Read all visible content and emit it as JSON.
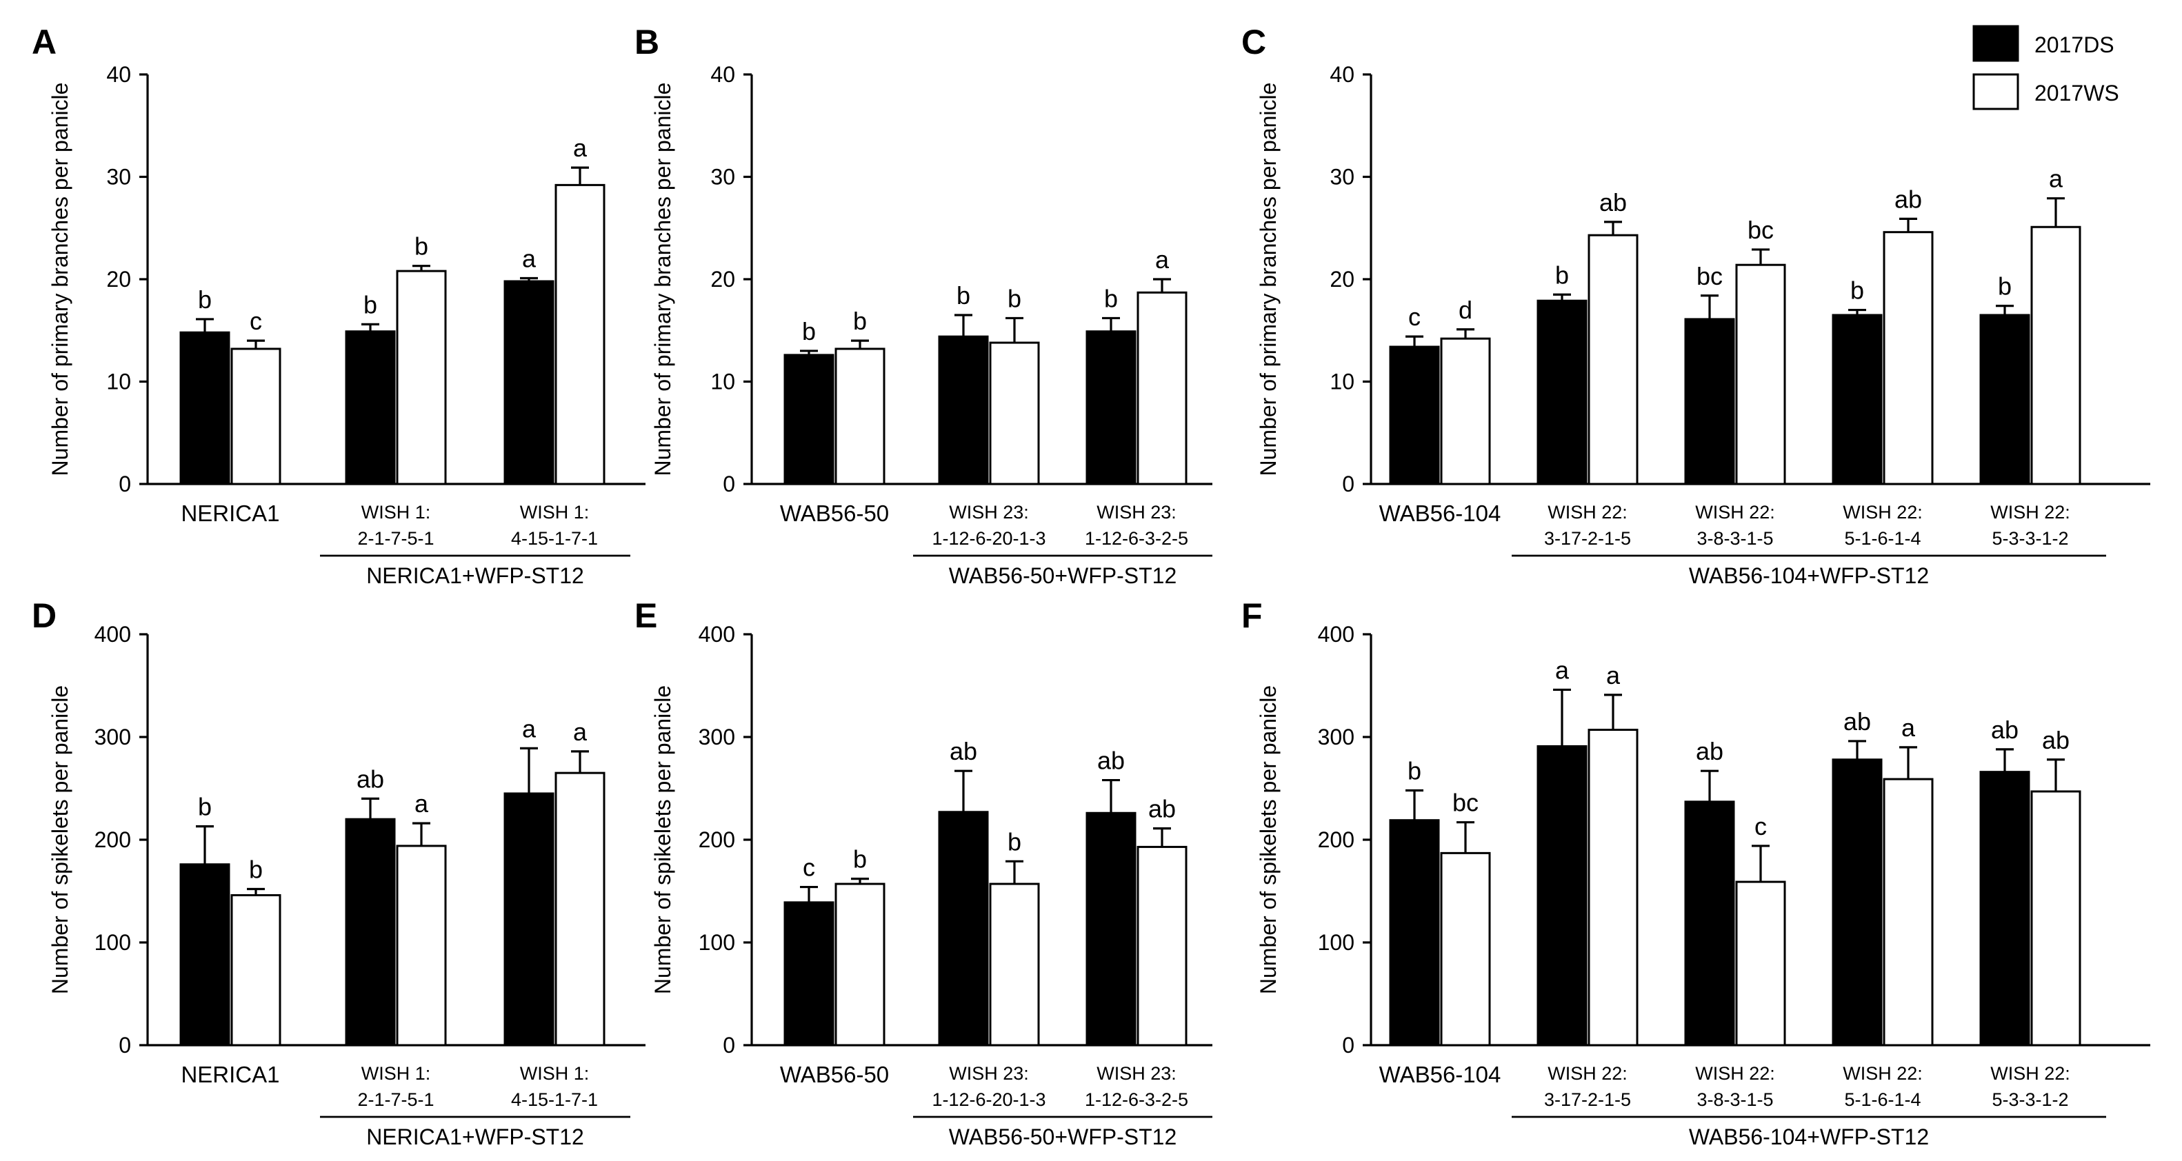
{
  "legend": {
    "items": [
      {
        "label": "2017DS",
        "color": "#000000"
      },
      {
        "label": "2017WS",
        "color": "#ffffff"
      }
    ]
  },
  "chart_data": [
    {
      "panel": "A",
      "type": "bar",
      "ylabel": "Number of primary branches per panicle",
      "ylim": [
        0,
        40
      ],
      "yticks": [
        0,
        10,
        20,
        30,
        40
      ],
      "categories": [
        {
          "lines": [
            "NERICA1"
          ]
        },
        {
          "lines": [
            "WISH 1:",
            "2-1-7-5-1"
          ]
        },
        {
          "lines": [
            "WISH 1:",
            "4-15-1-7-1"
          ]
        }
      ],
      "group": {
        "label": "NERICA1+WFP-ST12",
        "from": 1,
        "to": 2
      },
      "series": [
        {
          "name": "2017DS",
          "values": [
            14.8,
            14.9,
            19.8
          ],
          "errors": [
            1.3,
            0.7,
            0.3
          ],
          "letters": [
            "b",
            "b",
            "a"
          ]
        },
        {
          "name": "2017WS",
          "values": [
            13.2,
            20.8,
            29.2
          ],
          "errors": [
            0.8,
            0.5,
            1.7
          ],
          "letters": [
            "c",
            "b",
            "a"
          ]
        }
      ]
    },
    {
      "panel": "B",
      "type": "bar",
      "ylabel": "Number of primary branches per panicle",
      "ylim": [
        0,
        40
      ],
      "yticks": [
        0,
        10,
        20,
        30,
        40
      ],
      "categories": [
        {
          "lines": [
            "WAB56-50"
          ]
        },
        {
          "lines": [
            "WISH 23:",
            "1-12-6-20-1-3"
          ]
        },
        {
          "lines": [
            "WISH 23:",
            "1-12-6-3-2-5"
          ]
        }
      ],
      "group": {
        "label": "WAB56-50+WFP-ST12",
        "from": 1,
        "to": 2
      },
      "series": [
        {
          "name": "2017DS",
          "values": [
            12.6,
            14.4,
            14.9
          ],
          "errors": [
            0.4,
            2.1,
            1.3
          ],
          "letters": [
            "b",
            "b",
            "b"
          ]
        },
        {
          "name": "2017WS",
          "values": [
            13.2,
            13.8,
            18.7
          ],
          "errors": [
            0.8,
            2.4,
            1.3
          ],
          "letters": [
            "b",
            "b",
            "a"
          ]
        }
      ]
    },
    {
      "panel": "C",
      "type": "bar",
      "ylabel": "Number of primary branches per panicle",
      "ylim": [
        0,
        40
      ],
      "yticks": [
        0,
        10,
        20,
        30,
        40
      ],
      "categories": [
        {
          "lines": [
            "WAB56-104"
          ]
        },
        {
          "lines": [
            "WISH 22:",
            "3-17-2-1-5"
          ]
        },
        {
          "lines": [
            "WISH 22:",
            "3-8-3-1-5"
          ]
        },
        {
          "lines": [
            "WISH 22:",
            "5-1-6-1-4"
          ]
        },
        {
          "lines": [
            "WISH 22:",
            "5-3-3-1-2"
          ]
        }
      ],
      "group": {
        "label": "WAB56-104+WFP-ST12",
        "from": 1,
        "to": 4
      },
      "series": [
        {
          "name": "2017DS",
          "values": [
            13.4,
            17.9,
            16.1,
            16.5,
            16.5
          ],
          "errors": [
            1.0,
            0.6,
            2.3,
            0.5,
            0.9
          ],
          "letters": [
            "c",
            "b",
            "bc",
            "b",
            "b"
          ]
        },
        {
          "name": "2017WS",
          "values": [
            14.2,
            24.3,
            21.4,
            24.6,
            25.1
          ],
          "errors": [
            0.9,
            1.3,
            1.5,
            1.3,
            2.8
          ],
          "letters": [
            "d",
            "ab",
            "bc",
            "ab",
            "a"
          ]
        }
      ]
    },
    {
      "panel": "D",
      "type": "bar",
      "ylabel": "Number of spikelets per panicle",
      "ylim": [
        0,
        400
      ],
      "yticks": [
        0,
        100,
        200,
        300,
        400
      ],
      "categories": [
        {
          "lines": [
            "NERICA1"
          ]
        },
        {
          "lines": [
            "WISH 1:",
            "2-1-7-5-1"
          ]
        },
        {
          "lines": [
            "WISH 1:",
            "4-15-1-7-1"
          ]
        }
      ],
      "group": {
        "label": "NERICA1+WFP-ST12",
        "from": 1,
        "to": 2
      },
      "series": [
        {
          "name": "2017DS",
          "values": [
            176,
            220,
            245
          ],
          "errors": [
            37,
            20,
            44
          ],
          "letters": [
            "b",
            "ab",
            "a"
          ]
        },
        {
          "name": "2017WS",
          "values": [
            146,
            194,
            265
          ],
          "errors": [
            6,
            22,
            21
          ],
          "letters": [
            "b",
            "a",
            "a"
          ]
        }
      ]
    },
    {
      "panel": "E",
      "type": "bar",
      "ylabel": "Number of spikelets per panicle",
      "ylim": [
        0,
        400
      ],
      "yticks": [
        0,
        100,
        200,
        300,
        400
      ],
      "categories": [
        {
          "lines": [
            "WAB56-50"
          ]
        },
        {
          "lines": [
            "WISH 23:",
            "1-12-6-20-1-3"
          ]
        },
        {
          "lines": [
            "WISH 23:",
            "1-12-6-3-2-5"
          ]
        }
      ],
      "group": {
        "label": "WAB56-50+WFP-ST12",
        "from": 1,
        "to": 2
      },
      "series": [
        {
          "name": "2017DS",
          "values": [
            139,
            227,
            226
          ],
          "errors": [
            15,
            40,
            32
          ],
          "letters": [
            "c",
            "ab",
            "ab"
          ]
        },
        {
          "name": "2017WS",
          "values": [
            157,
            157,
            193
          ],
          "errors": [
            5,
            22,
            18
          ],
          "letters": [
            "b",
            "b",
            "ab"
          ]
        }
      ]
    },
    {
      "panel": "F",
      "type": "bar",
      "ylabel": "Number of spikelets per panicle",
      "ylim": [
        0,
        400
      ],
      "yticks": [
        0,
        100,
        200,
        300,
        400
      ],
      "categories": [
        {
          "lines": [
            "WAB56-104"
          ]
        },
        {
          "lines": [
            "WISH 22:",
            "3-17-2-1-5"
          ]
        },
        {
          "lines": [
            "WISH 22:",
            "3-8-3-1-5"
          ]
        },
        {
          "lines": [
            "WISH 22:",
            "5-1-6-1-4"
          ]
        },
        {
          "lines": [
            "WISH 22:",
            "5-3-3-1-2"
          ]
        }
      ],
      "group": {
        "label": "WAB56-104+WFP-ST12",
        "from": 1,
        "to": 4
      },
      "series": [
        {
          "name": "2017DS",
          "values": [
            219,
            291,
            237,
            278,
            266
          ],
          "errors": [
            29,
            55,
            30,
            18,
            22
          ],
          "letters": [
            "b",
            "a",
            "ab",
            "ab",
            "ab"
          ]
        },
        {
          "name": "2017WS",
          "values": [
            187,
            307,
            159,
            259,
            247
          ],
          "errors": [
            30,
            34,
            35,
            31,
            31
          ],
          "letters": [
            "bc",
            "a",
            "c",
            "a",
            "ab"
          ]
        }
      ]
    }
  ]
}
